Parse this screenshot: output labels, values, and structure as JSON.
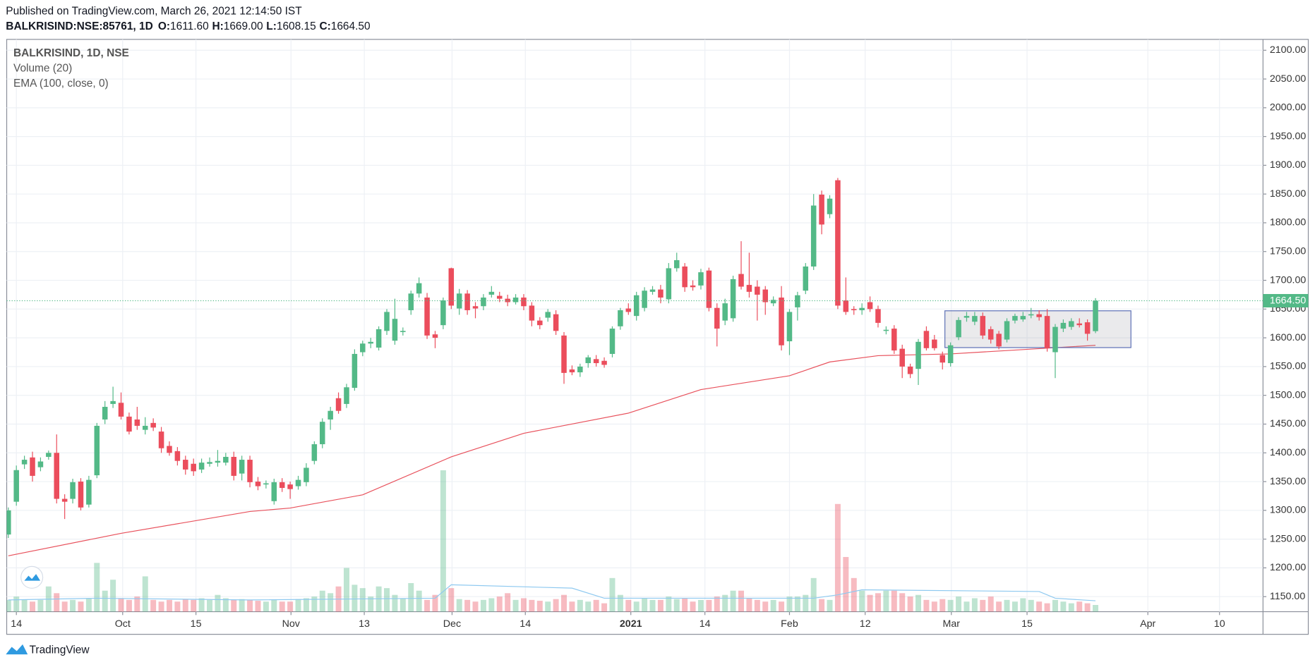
{
  "header": {
    "published": "Published on TradingView.com, March 26, 2021 12:14:50 IST",
    "symbol": "BALKRISIND:NSE:85761, 1D",
    "ohlc": [
      {
        "key": "O:",
        "value": "1611.60"
      },
      {
        "key": "H:",
        "value": "1669.00"
      },
      {
        "key": "L:",
        "value": "1608.15"
      },
      {
        "key": "C:",
        "value": "1664.50"
      }
    ]
  },
  "footer": {
    "brand": "TradingView"
  },
  "chart_data": {
    "type": "candlestick",
    "legend": [
      "BALKRISIND, 1D, NSE",
      "Volume (20)",
      "EMA (100, close, 0)"
    ],
    "up_color": "#53b987",
    "down_color": "#eb4d5c",
    "grid": true,
    "xlim": [
      -0.2,
      155.8
    ],
    "ylim": [
      1123.8,
      2118.9
    ],
    "xticks": [
      {
        "value": 1,
        "label": "14"
      },
      {
        "value": 14.2,
        "label": "Oct"
      },
      {
        "value": 23.3,
        "label": "15"
      },
      {
        "value": 35.1,
        "label": "Nov"
      },
      {
        "value": 44.2,
        "label": "13"
      },
      {
        "value": 55.1,
        "label": "Dec"
      },
      {
        "value": 64.2,
        "label": "14"
      },
      {
        "value": 77.3,
        "label": "2021",
        "bold": true
      },
      {
        "value": 86.5,
        "label": "14"
      },
      {
        "value": 97,
        "label": "Feb"
      },
      {
        "value": 106.4,
        "label": "12"
      },
      {
        "value": 117.1,
        "label": "Mar"
      },
      {
        "value": 126.5,
        "label": "15"
      },
      {
        "value": 141.5,
        "label": "Apr"
      },
      {
        "value": 150.4,
        "label": "10"
      }
    ],
    "yticks": [
      {
        "value": 1150,
        "label": "1150.00"
      },
      {
        "value": 1200,
        "label": "1200.00"
      },
      {
        "value": 1250,
        "label": "1250.00"
      },
      {
        "value": 1300,
        "label": "1300.00"
      },
      {
        "value": 1350,
        "label": "1350.00"
      },
      {
        "value": 1400,
        "label": "1400.00"
      },
      {
        "value": 1450,
        "label": "1450.00"
      },
      {
        "value": 1500,
        "label": "1500.00"
      },
      {
        "value": 1550,
        "label": "1550.00"
      },
      {
        "value": 1600,
        "label": "1600.00"
      },
      {
        "value": 1650,
        "label": "1650.00"
      },
      {
        "value": 1700,
        "label": "1700.00"
      },
      {
        "value": 1750,
        "label": "1750.00"
      },
      {
        "value": 1800,
        "label": "1800.00"
      },
      {
        "value": 1850,
        "label": "1850.00"
      },
      {
        "value": 1900,
        "label": "1900.00"
      },
      {
        "value": 1950,
        "label": "1950.00"
      },
      {
        "value": 2000,
        "label": "2000.00"
      },
      {
        "value": 2050,
        "label": "2050.00"
      },
      {
        "value": 2100,
        "label": "2100.00"
      }
    ],
    "candles": [
      [
        1258,
        1305,
        1252,
        1300
      ],
      [
        1315,
        1378,
        1308,
        1370
      ],
      [
        1380,
        1395,
        1372,
        1388
      ],
      [
        1392,
        1402,
        1350,
        1360
      ],
      [
        1375,
        1392,
        1368,
        1385
      ],
      [
        1393,
        1404,
        1388,
        1400
      ],
      [
        1400,
        1432,
        1312,
        1320
      ],
      [
        1320,
        1328,
        1285,
        1315
      ],
      [
        1320,
        1355,
        1312,
        1349
      ],
      [
        1350,
        1356,
        1300,
        1305
      ],
      [
        1310,
        1360,
        1305,
        1353
      ],
      [
        1361,
        1452,
        1356,
        1447
      ],
      [
        1458,
        1490,
        1450,
        1480
      ],
      [
        1485,
        1515,
        1478,
        1490
      ],
      [
        1487,
        1505,
        1458,
        1463
      ],
      [
        1463,
        1470,
        1432,
        1437
      ],
      [
        1458,
        1480,
        1440,
        1447
      ],
      [
        1440,
        1462,
        1432,
        1447
      ],
      [
        1452,
        1460,
        1438,
        1444
      ],
      [
        1437,
        1445,
        1400,
        1408
      ],
      [
        1412,
        1420,
        1395,
        1400
      ],
      [
        1403,
        1410,
        1378,
        1386
      ],
      [
        1388,
        1395,
        1362,
        1371
      ],
      [
        1381,
        1390,
        1360,
        1368
      ],
      [
        1371,
        1390,
        1365,
        1383
      ],
      [
        1381,
        1392,
        1376,
        1384
      ],
      [
        1383,
        1405,
        1376,
        1386
      ],
      [
        1383,
        1400,
        1378,
        1393
      ],
      [
        1393,
        1402,
        1352,
        1360
      ],
      [
        1364,
        1395,
        1352,
        1388
      ],
      [
        1388,
        1395,
        1340,
        1349
      ],
      [
        1350,
        1358,
        1335,
        1342
      ],
      [
        1345,
        1352,
        1338,
        1347
      ],
      [
        1316,
        1355,
        1310,
        1349
      ],
      [
        1349,
        1356,
        1332,
        1339
      ],
      [
        1345,
        1350,
        1320,
        1337
      ],
      [
        1342,
        1360,
        1336,
        1353
      ],
      [
        1349,
        1382,
        1342,
        1374
      ],
      [
        1386,
        1420,
        1380,
        1415
      ],
      [
        1415,
        1460,
        1408,
        1454
      ],
      [
        1458,
        1480,
        1440,
        1473
      ],
      [
        1495,
        1505,
        1468,
        1473
      ],
      [
        1485,
        1520,
        1478,
        1514
      ],
      [
        1513,
        1580,
        1508,
        1572
      ],
      [
        1575,
        1595,
        1568,
        1590
      ],
      [
        1590,
        1600,
        1582,
        1593
      ],
      [
        1583,
        1620,
        1578,
        1615
      ],
      [
        1612,
        1650,
        1605,
        1645
      ],
      [
        1595,
        1668,
        1588,
        1633
      ],
      [
        1610,
        1618,
        1604,
        1612
      ],
      [
        1648,
        1682,
        1640,
        1677
      ],
      [
        1677,
        1705,
        1670,
        1695
      ],
      [
        1670,
        1678,
        1598,
        1604
      ],
      [
        1606,
        1612,
        1582,
        1600
      ],
      [
        1622,
        1670,
        1615,
        1665
      ],
      [
        1721,
        1722,
        1650,
        1656
      ],
      [
        1651,
        1685,
        1640,
        1677
      ],
      [
        1677,
        1683,
        1640,
        1648
      ],
      [
        1655,
        1662,
        1634,
        1651
      ],
      [
        1655,
        1676,
        1648,
        1670
      ],
      [
        1675,
        1690,
        1670,
        1680
      ],
      [
        1673,
        1680,
        1662,
        1668
      ],
      [
        1668,
        1675,
        1655,
        1662
      ],
      [
        1662,
        1676,
        1658,
        1670
      ],
      [
        1670,
        1676,
        1648,
        1655
      ],
      [
        1656,
        1662,
        1620,
        1630
      ],
      [
        1630,
        1636,
        1615,
        1622
      ],
      [
        1635,
        1650,
        1628,
        1645
      ],
      [
        1641,
        1648,
        1605,
        1612
      ],
      [
        1604,
        1610,
        1520,
        1539
      ],
      [
        1545,
        1552,
        1535,
        1540
      ],
      [
        1540,
        1555,
        1532,
        1550
      ],
      [
        1556,
        1570,
        1548,
        1566
      ],
      [
        1563,
        1570,
        1550,
        1556
      ],
      [
        1560,
        1566,
        1548,
        1553
      ],
      [
        1572,
        1620,
        1566,
        1616
      ],
      [
        1620,
        1652,
        1614,
        1648
      ],
      [
        1651,
        1660,
        1640,
        1645
      ],
      [
        1638,
        1680,
        1630,
        1674
      ],
      [
        1652,
        1688,
        1646,
        1682
      ],
      [
        1680,
        1690,
        1675,
        1684
      ],
      [
        1684,
        1692,
        1660,
        1670
      ],
      [
        1667,
        1730,
        1660,
        1721
      ],
      [
        1721,
        1748,
        1715,
        1735
      ],
      [
        1724,
        1730,
        1680,
        1688
      ],
      [
        1691,
        1700,
        1682,
        1688
      ],
      [
        1691,
        1720,
        1684,
        1714
      ],
      [
        1717,
        1722,
        1646,
        1652
      ],
      [
        1652,
        1660,
        1585,
        1616
      ],
      [
        1630,
        1668,
        1622,
        1660
      ],
      [
        1634,
        1708,
        1628,
        1702
      ],
      [
        1711,
        1768,
        1684,
        1689
      ],
      [
        1692,
        1748,
        1670,
        1680
      ],
      [
        1689,
        1700,
        1630,
        1675
      ],
      [
        1684,
        1690,
        1640,
        1662
      ],
      [
        1660,
        1672,
        1655,
        1666
      ],
      [
        1670,
        1690,
        1578,
        1587
      ],
      [
        1594,
        1650,
        1570,
        1645
      ],
      [
        1653,
        1680,
        1630,
        1674
      ],
      [
        1682,
        1730,
        1676,
        1724
      ],
      [
        1724,
        1850,
        1718,
        1830
      ],
      [
        1849,
        1856,
        1780,
        1797
      ],
      [
        1815,
        1848,
        1808,
        1842
      ],
      [
        1874,
        1878,
        1650,
        1656
      ],
      [
        1665,
        1705,
        1640,
        1645
      ],
      [
        1650,
        1655,
        1640,
        1648
      ],
      [
        1648,
        1660,
        1640,
        1652
      ],
      [
        1662,
        1672,
        1645,
        1650
      ],
      [
        1650,
        1656,
        1618,
        1626
      ],
      [
        1612,
        1620,
        1606,
        1614
      ],
      [
        1616,
        1622,
        1572,
        1578
      ],
      [
        1581,
        1588,
        1530,
        1550
      ],
      [
        1550,
        1555,
        1530,
        1537
      ],
      [
        1546,
        1598,
        1518,
        1593
      ],
      [
        1612,
        1620,
        1578,
        1582
      ],
      [
        1597,
        1605,
        1578,
        1582
      ],
      [
        1570,
        1576,
        1545,
        1557
      ],
      [
        1556,
        1592,
        1550,
        1587
      ],
      [
        1601,
        1636,
        1596,
        1631
      ],
      [
        1635,
        1645,
        1628,
        1638
      ],
      [
        1628,
        1645,
        1622,
        1638
      ],
      [
        1638,
        1644,
        1598,
        1604
      ],
      [
        1615,
        1620,
        1590,
        1597
      ],
      [
        1607,
        1612,
        1580,
        1585
      ],
      [
        1597,
        1634,
        1592,
        1629
      ],
      [
        1630,
        1642,
        1625,
        1638
      ],
      [
        1632,
        1645,
        1628,
        1638
      ],
      [
        1639,
        1652,
        1634,
        1641
      ],
      [
        1641,
        1648,
        1630,
        1636
      ],
      [
        1638,
        1650,
        1576,
        1582
      ],
      [
        1575,
        1624,
        1530,
        1619
      ],
      [
        1616,
        1632,
        1610,
        1626
      ],
      [
        1619,
        1634,
        1614,
        1629
      ],
      [
        1625,
        1634,
        1618,
        1622
      ],
      [
        1627,
        1632,
        1595,
        1607
      ],
      [
        1611.6,
        1669,
        1608.15,
        1664.5
      ]
    ],
    "volume": {
      "vlim": [
        0,
        680
      ],
      "values": [
        14,
        18,
        14,
        12,
        14,
        30,
        22,
        12,
        14,
        12,
        16,
        58,
        25,
        38,
        16,
        14,
        18,
        42,
        14,
        12,
        14,
        12,
        15,
        14,
        16,
        14,
        20,
        16,
        14,
        15,
        14,
        13,
        12,
        14,
        12,
        12,
        15,
        16,
        18,
        25,
        22,
        30,
        52,
        32,
        28,
        18,
        30,
        28,
        20,
        16,
        34,
        25,
        14,
        20,
        168,
        28,
        15,
        14,
        12,
        14,
        16,
        18,
        22,
        14,
        16,
        14,
        13,
        12,
        15,
        20,
        12,
        14,
        12,
        14,
        10,
        40,
        20,
        14,
        12,
        16,
        14,
        14,
        18,
        15,
        16,
        12,
        14,
        14,
        18,
        20,
        25,
        25,
        16,
        14,
        12,
        14,
        12,
        18,
        18,
        20,
        40,
        15,
        14,
        128,
        65,
        40,
        25,
        20,
        22,
        25,
        25,
        22,
        18,
        20,
        14,
        12,
        15,
        14,
        18,
        12,
        16,
        14,
        18,
        12,
        14,
        12,
        16,
        14,
        12,
        10,
        14,
        12,
        10,
        12,
        10,
        8
      ],
      "ma": {
        "color": "#8ec9f0",
        "x": [
          0,
          11,
          30,
          53,
          55,
          70,
          74,
          100,
          103,
          106,
          128,
          130,
          135
        ],
        "values": [
          14,
          16,
          14,
          16,
          32,
          28,
          16,
          16,
          20,
          26,
          24,
          16,
          13
        ]
      }
    },
    "ema": {
      "color": "#e8505b",
      "x": [
        0,
        14,
        30,
        35,
        44,
        55,
        64,
        77,
        86,
        97,
        102,
        108,
        117,
        135
      ],
      "values": [
        1221,
        1260,
        1298,
        1304,
        1327,
        1393,
        1434,
        1469,
        1510,
        1534,
        1558,
        1569,
        1572,
        1587
      ]
    },
    "last_price": {
      "value": 1664.5,
      "label": "1664.50"
    },
    "box": {
      "x": [
        116.3,
        139.4
      ],
      "y": [
        1583,
        1647
      ]
    }
  }
}
